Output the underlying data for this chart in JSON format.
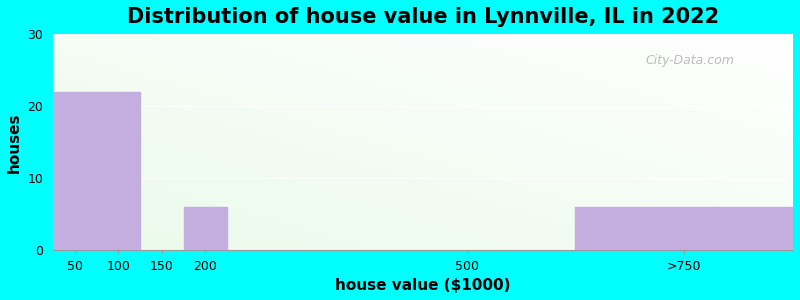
{
  "title": "Distribution of house value in Lynnville, IL in 2022",
  "xlabel": "house value ($1000)",
  "ylabel": "houses",
  "bar_color": "#C4AEE0",
  "background_outer": "#00FFFF",
  "ylim": [
    0,
    30
  ],
  "yticks": [
    0,
    10,
    20,
    30
  ],
  "title_fontsize": 15,
  "axis_label_fontsize": 11,
  "bar_left_edges": [
    25,
    75,
    125,
    175,
    350,
    625
  ],
  "bar_widths": [
    50,
    50,
    50,
    50,
    100,
    250
  ],
  "values": [
    22,
    22,
    0,
    6,
    0,
    6
  ],
  "tick_positions": [
    50,
    100,
    150,
    200,
    500,
    750
  ],
  "tick_labels": [
    "50",
    "100",
    "150",
    "200",
    "500",
    ">750"
  ],
  "xlim": [
    25,
    875
  ],
  "watermark": "City-Data.com"
}
